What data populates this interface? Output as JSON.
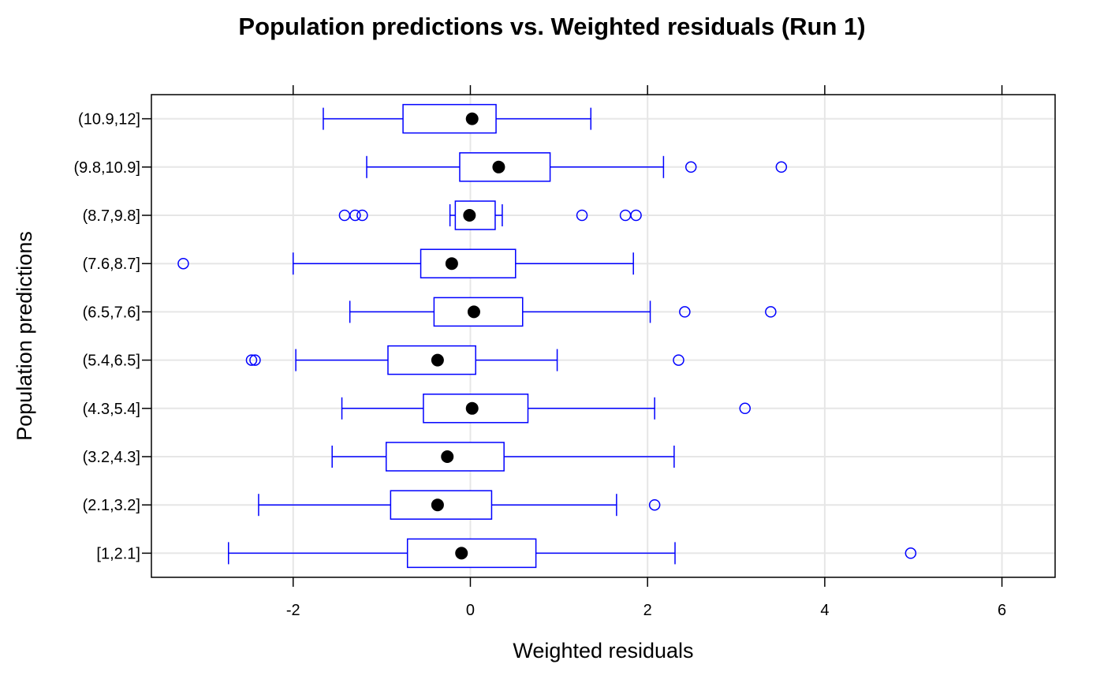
{
  "chart_data": {
    "type": "box",
    "title": "Population predictions vs. Weighted residuals (Run 1)",
    "xlabel": "Weighted residuals",
    "ylabel": "Population predictions",
    "xlim": [
      -3.6,
      6.6
    ],
    "xticks": [
      -2,
      0,
      2,
      4,
      6
    ],
    "xtick_labels": [
      "-2",
      "0",
      "2",
      "4",
      "6"
    ],
    "grid": true,
    "box_color": "#0000ff",
    "median_color": "#000000",
    "grid_color": "#e6e6e6",
    "categories": [
      "[1,2.1]",
      "(2.1,3.2]",
      "(3.2,4.3]",
      "(4.3,5.4]",
      "(5.4,6.5]",
      "(6.5,7.6]",
      "(7.6,8.7]",
      "(8.7,9.8]",
      "(9.8,10.9]",
      "(10.9,12]"
    ],
    "boxes": [
      {
        "category": "[1,2.1]",
        "whisker_low": -2.73,
        "q1": -0.71,
        "median": -0.1,
        "q3": 0.74,
        "whisker_high": 2.31,
        "outliers": [
          4.97
        ]
      },
      {
        "category": "(2.1,3.2]",
        "whisker_low": -2.39,
        "q1": -0.9,
        "median": -0.37,
        "q3": 0.24,
        "whisker_high": 1.65,
        "outliers": [
          2.08
        ]
      },
      {
        "category": "(3.2,4.3]",
        "whisker_low": -1.56,
        "q1": -0.95,
        "median": -0.26,
        "q3": 0.38,
        "whisker_high": 2.3,
        "outliers": []
      },
      {
        "category": "(4.3,5.4]",
        "whisker_low": -1.45,
        "q1": -0.53,
        "median": 0.02,
        "q3": 0.65,
        "whisker_high": 2.08,
        "outliers": [
          3.1
        ]
      },
      {
        "category": "(5.4,6.5]",
        "whisker_low": -1.97,
        "q1": -0.93,
        "median": -0.37,
        "q3": 0.06,
        "whisker_high": 0.98,
        "outliers": [
          -2.47,
          -2.43,
          2.35
        ]
      },
      {
        "category": "(6.5,7.6]",
        "whisker_low": -1.36,
        "q1": -0.41,
        "median": 0.04,
        "q3": 0.59,
        "whisker_high": 2.03,
        "outliers": [
          2.42,
          3.39
        ]
      },
      {
        "category": "(7.6,8.7]",
        "whisker_low": -2.0,
        "q1": -0.56,
        "median": -0.21,
        "q3": 0.51,
        "whisker_high": 1.84,
        "outliers": [
          -3.24
        ]
      },
      {
        "category": "(8.7,9.8]",
        "whisker_low": -0.23,
        "q1": -0.17,
        "median": -0.01,
        "q3": 0.28,
        "whisker_high": 0.36,
        "outliers": [
          -1.42,
          -1.3,
          -1.22,
          1.26,
          1.75,
          1.87
        ]
      },
      {
        "category": "(9.8,10.9]",
        "whisker_low": -1.17,
        "q1": -0.12,
        "median": 0.32,
        "q3": 0.9,
        "whisker_high": 2.18,
        "outliers": [
          2.49,
          3.51
        ]
      },
      {
        "category": "(10.9,12]",
        "whisker_low": -1.66,
        "q1": -0.76,
        "median": 0.02,
        "q3": 0.29,
        "whisker_high": 1.36,
        "outliers": []
      }
    ]
  }
}
